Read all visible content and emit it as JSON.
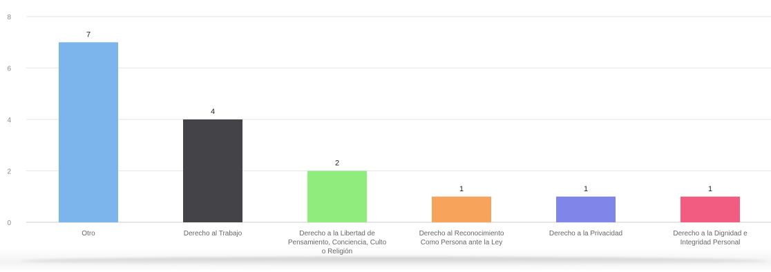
{
  "chart_data": {
    "type": "bar",
    "categories": [
      "Otro",
      "Derecho al Trabajo",
      "Derecho a la Libertad de Pensamiento, Conciencia, Culto o Religión",
      "Derecho al Reconocimiento Como Persona ante la Ley",
      "Derecho a la Privacidad",
      "Derecho a la Dignidad e Integridad Personal"
    ],
    "category_lines": [
      [
        "Otro"
      ],
      [
        "Derecho al Trabajo"
      ],
      [
        "Derecho a la Libertad de",
        "Pensamiento, Conciencia, Culto",
        "o Religión"
      ],
      [
        "Derecho al Reconocimiento",
        "Como Persona ante la Ley"
      ],
      [
        "Derecho a la Privacidad"
      ],
      [
        "Derecho a la Dignidad e",
        "Integridad Personal"
      ]
    ],
    "values": [
      7,
      4,
      2,
      1,
      1,
      1
    ],
    "colors": [
      "#7cb5ec",
      "#434348",
      "#90ed7d",
      "#f7a35c",
      "#8085e9",
      "#f15c80"
    ],
    "title": "",
    "xlabel": "",
    "ylabel": "",
    "ylim": [
      0,
      8
    ],
    "yticks": [
      0,
      2,
      4,
      6,
      8
    ],
    "grid": true,
    "data_labels": true
  }
}
